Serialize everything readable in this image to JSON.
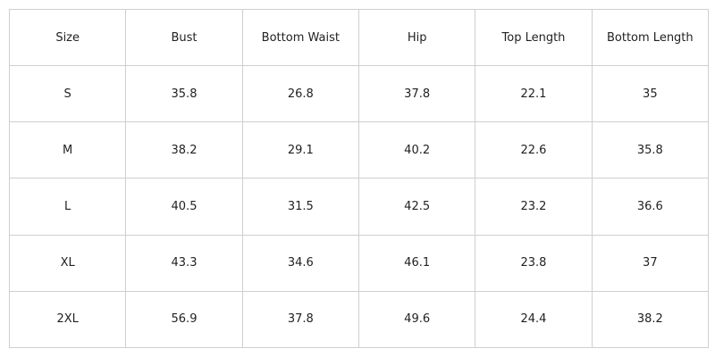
{
  "table": {
    "header": [
      "Size",
      "Bust",
      "Bottom Waist",
      "Hip",
      "Top Length",
      "Bottom Length"
    ],
    "rows": [
      [
        "S",
        35.8,
        26.8,
        37.8,
        22.1,
        35
      ],
      [
        "M",
        38.2,
        29.1,
        40.2,
        22.6,
        35.8
      ],
      [
        "L",
        40.5,
        31.5,
        42.5,
        23.2,
        36.6
      ],
      [
        "XL",
        43.3,
        34.6,
        46.1,
        23.8,
        37
      ],
      [
        "2XL",
        56.9,
        37.8,
        49.6,
        24.4,
        38.2
      ]
    ]
  }
}
